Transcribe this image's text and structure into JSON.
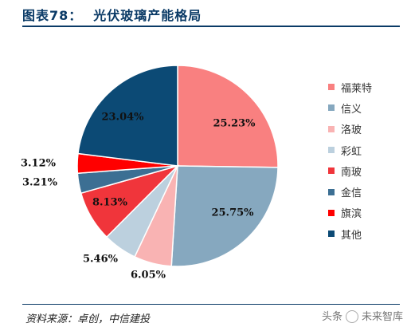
{
  "figure": {
    "label": "图表78：",
    "title": "光伏玻璃产能格局"
  },
  "source_text": "资料来源：卓创，中信建投",
  "watermark": {
    "left_text": "头条",
    "right_text": "未来智库"
  },
  "chart_data": {
    "type": "pie",
    "title": "",
    "legend_position": "right",
    "slices": [
      {
        "name": "福莱特",
        "value": 25.23,
        "label": "25.23%",
        "color": "#f98080"
      },
      {
        "name": "信义",
        "value": 25.75,
        "label": "25.75%",
        "color": "#86a8bf"
      },
      {
        "name": "洛玻",
        "value": 6.05,
        "label": "6.05%",
        "color": "#f9b3b3"
      },
      {
        "name": "彩虹",
        "value": 5.46,
        "label": "5.46%",
        "color": "#bcd0de"
      },
      {
        "name": "南玻",
        "value": 8.13,
        "label": "8.13%",
        "color": "#f0353b"
      },
      {
        "name": "金信",
        "value": 3.21,
        "label": "3.21%",
        "color": "#3c6f93"
      },
      {
        "name": "旗滨",
        "value": 3.12,
        "label": "3.12%",
        "color": "#ff0000"
      },
      {
        "name": "其他",
        "value": 23.04,
        "label": "23.04%",
        "color": "#0c4a75"
      }
    ]
  }
}
